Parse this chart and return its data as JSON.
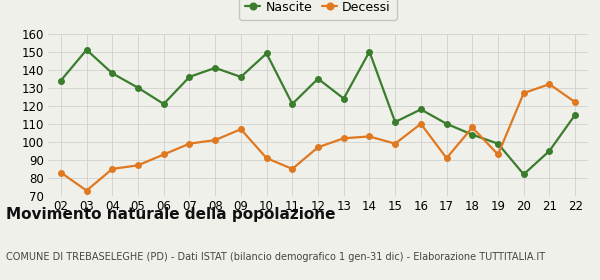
{
  "years": [
    "02",
    "03",
    "04",
    "05",
    "06",
    "07",
    "08",
    "09",
    "10",
    "11",
    "12",
    "13",
    "14",
    "15",
    "16",
    "17",
    "18",
    "19",
    "20",
    "21",
    "22"
  ],
  "nascite": [
    134,
    151,
    138,
    130,
    121,
    136,
    141,
    136,
    149,
    121,
    135,
    124,
    150,
    111,
    118,
    110,
    104,
    99,
    82,
    95,
    115
  ],
  "decessi": [
    83,
    73,
    85,
    87,
    93,
    99,
    101,
    107,
    91,
    85,
    97,
    102,
    103,
    99,
    110,
    91,
    108,
    93,
    127,
    132,
    122
  ],
  "nascite_color": "#3a7d2c",
  "decessi_color": "#e07820",
  "bg_color": "#f0f0eb",
  "grid_color": "#d0d0d0",
  "title": "Movimento naturale della popolazione",
  "subtitle": "COMUNE DI TREBASELEGHE (PD) - Dati ISTAT (bilancio demografico 1 gen-31 dic) - Elaborazione TUTTITALIA.IT",
  "legend_nascite": "Nascite",
  "legend_decessi": "Decessi",
  "ylim": [
    70,
    160
  ],
  "yticks": [
    70,
    80,
    90,
    100,
    110,
    120,
    130,
    140,
    150,
    160
  ],
  "marker_size": 4,
  "line_width": 1.6,
  "title_fontsize": 11,
  "subtitle_fontsize": 7,
  "tick_fontsize": 8.5,
  "legend_fontsize": 9
}
